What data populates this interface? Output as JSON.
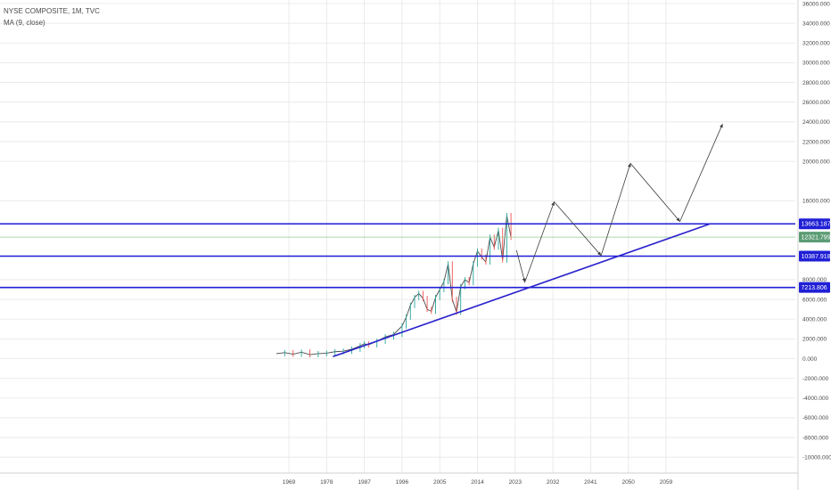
{
  "legend": {
    "symbol": "NYSE COMPOSITE, 1M, TVC",
    "indicator": "MA (9, close)"
  },
  "colors": {
    "grid": "#e6e6e6",
    "level_line": "#1f1fd6",
    "trendline": "#2a22cc",
    "forecast_path": "#3c3c3c",
    "price_up": "#26a69a",
    "price_down": "#ef5350",
    "current_line": "#8fd08f",
    "current_badge": "#5c9c75",
    "text": "#4a4a4a"
  },
  "chart_data": {
    "type": "line",
    "title": "NYSE COMPOSITE, 1M, TVC",
    "x_ticks": [
      "1969",
      "1978",
      "1987",
      "1996",
      "2005",
      "2014",
      "2023",
      "2032",
      "2041",
      "2050",
      "2059"
    ],
    "y_ticks": [
      "36000.000",
      "34000.000",
      "32000.000",
      "30000.000",
      "28000.000",
      "26000.000",
      "24000.000",
      "22000.000",
      "20000.000",
      "16000.000",
      "8000.000",
      "6000.000",
      "4000.000",
      "2000.000",
      "0.000",
      "-2000.000",
      "-4000.000",
      "-6000.000",
      "-8000.000",
      "-10000.000"
    ],
    "ylim": [
      -11200,
      36600
    ],
    "xlim": [
      1964,
      2086
    ],
    "grid": true,
    "series": [
      {
        "name": "NYSE COMPOSITE",
        "x": [
          1966,
          1968,
          1970,
          1972,
          1974,
          1976,
          1978,
          1980,
          1982,
          1984,
          1986,
          1987,
          1988,
          1990,
          1992,
          1994,
          1996,
          1997,
          1998,
          1999,
          2000,
          2001,
          2002,
          2003,
          2004,
          2005,
          2006,
          2007,
          2008,
          2009,
          2010,
          2011,
          2012,
          2013,
          2014,
          2015,
          2016,
          2017,
          2018,
          2019,
          2020,
          2021,
          2022
        ],
        "y": [
          500,
          600,
          450,
          650,
          400,
          500,
          550,
          700,
          750,
          950,
          1300,
          1500,
          1400,
          1750,
          2200,
          2450,
          3300,
          4200,
          5400,
          6200,
          6600,
          6100,
          5000,
          4800,
          6200,
          7000,
          7800,
          9600,
          6000,
          4700,
          7300,
          8000,
          7700,
          9600,
          10900,
          10300,
          9800,
          12300,
          11300,
          13000,
          10000,
          14500,
          12300
        ]
      }
    ],
    "horizontal_levels": [
      {
        "value": 13663.187,
        "label": "13663.187"
      },
      {
        "value": 10387.918,
        "label": "10387.918"
      },
      {
        "value": 7213.806,
        "label": "7213.806"
      }
    ],
    "current_price": {
      "value": 12321.799,
      "label": "12321.799"
    },
    "trendline": {
      "x": [
        1979.5,
        2069.5
      ],
      "y": [
        200,
        13663.187
      ]
    },
    "forecast_path": {
      "x": [
        2023.3,
        2025.3,
        2032.3,
        2043.5,
        2050.5,
        2062.3,
        2072.5
      ],
      "y": [
        11000,
        7750,
        15900,
        10450,
        19800,
        13900,
        23800
      ]
    }
  }
}
